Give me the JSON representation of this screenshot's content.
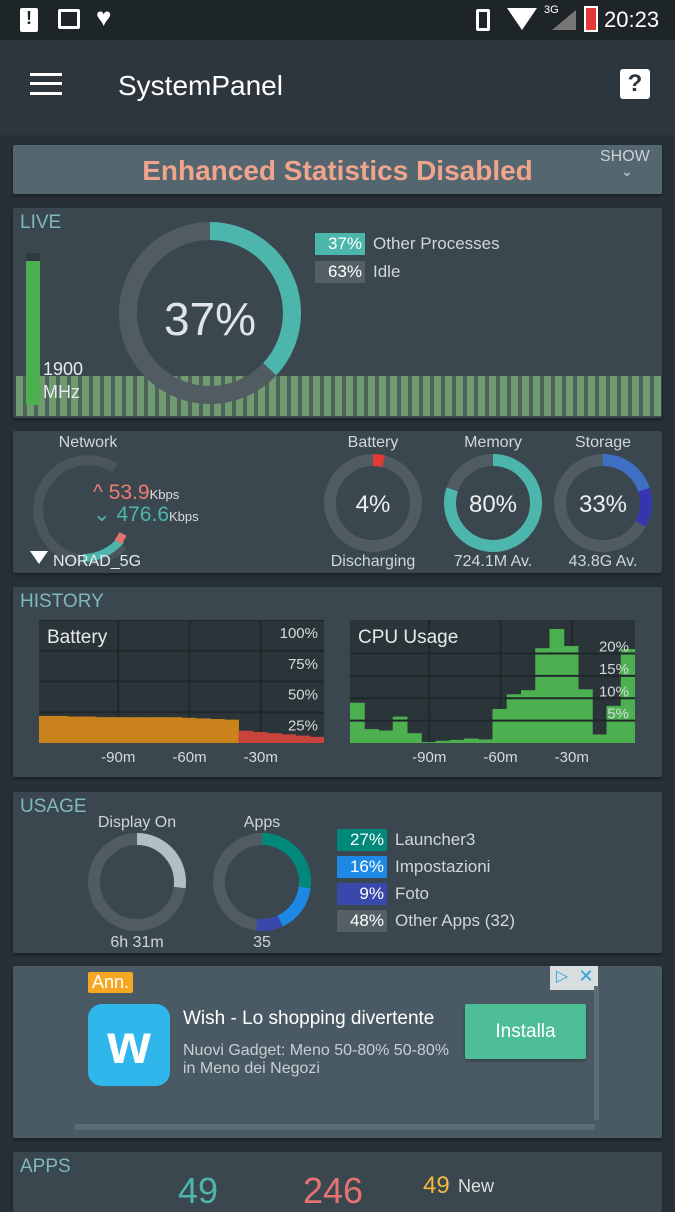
{
  "status_bar": {
    "time": "20:23",
    "network": "3G"
  },
  "toolbar": {
    "title": "SystemPanel",
    "menu_icon": "hamburger-icon",
    "help_icon": "help-icon"
  },
  "banner": {
    "text": "Enhanced Statistics Disabled",
    "show_label": "SHOW"
  },
  "live": {
    "section": "LIVE",
    "cpu_percent": 37,
    "cpu_label": "37%",
    "freq_value": "1900",
    "freq_unit": "MHz",
    "freq_fraction": 0.95,
    "legend": [
      {
        "pct": "37%",
        "label": "Other Processes",
        "color": "#4db6ac"
      },
      {
        "pct": "63%",
        "label": "Idle",
        "color": "#555f66"
      }
    ]
  },
  "stats": {
    "network": {
      "title": "Network",
      "up": "53.9",
      "down": "476.6",
      "unit": "Kbps",
      "ssid": "NORAD_5G"
    },
    "battery": {
      "title": "Battery",
      "value": "4%",
      "percent": 4,
      "sub": "Discharging"
    },
    "memory": {
      "title": "Memory",
      "value": "80%",
      "percent": 80,
      "sub": "724.1M Av."
    },
    "storage": {
      "title": "Storage",
      "value": "33%",
      "percent": 33,
      "sub": "43.8G Av."
    }
  },
  "history": {
    "section": "HISTORY",
    "battery": {
      "title": "Battery",
      "yticks": [
        "100%",
        "75%",
        "50%",
        "25%"
      ],
      "xticks": [
        "-90m",
        "-60m",
        "-30m"
      ],
      "values": [
        22,
        22,
        21.5,
        21.5,
        21,
        21,
        21,
        21,
        21,
        21,
        20.5,
        20,
        19.5,
        19,
        10,
        9,
        8,
        7,
        6,
        5
      ]
    },
    "cpu": {
      "title": "CPU Usage",
      "yticks": [
        "20%",
        "15%",
        "10%",
        "5%"
      ],
      "xticks": [
        "-90m",
        "-60m",
        "-30m"
      ],
      "values": [
        9,
        3.1,
        2.8,
        5.9,
        2.2,
        0.2,
        0.5,
        0.7,
        1,
        0.8,
        7.6,
        10.9,
        11.8,
        21.2,
        25.5,
        21.7,
        12,
        1.9,
        8.3,
        21
      ]
    }
  },
  "usage": {
    "section": "USAGE",
    "display": {
      "title": "Display On",
      "value": "6h 31m",
      "fraction": 0.27
    },
    "apps": {
      "title": "Apps",
      "value": "35"
    },
    "legend": [
      {
        "pct": "27%",
        "label": "Launcher3",
        "color": "#00897b"
      },
      {
        "pct": "16%",
        "label": "Impostazioni",
        "color": "#1e88e5"
      },
      {
        "pct": "9%",
        "label": "Foto",
        "color": "#3949ab"
      },
      {
        "pct": "48%",
        "label": "Other Apps (32)",
        "color": "#555f66"
      }
    ]
  },
  "ad": {
    "badge": "Ann.",
    "title": "Wish - Lo shopping divertente",
    "description": "Nuovi Gadget: Meno 50-80% 50-80% in Meno dei Negozi",
    "button": "Installa"
  },
  "apps": {
    "section": "APPS",
    "count1": "49",
    "count2": "246",
    "new_count": "49",
    "new_label": "New"
  }
}
